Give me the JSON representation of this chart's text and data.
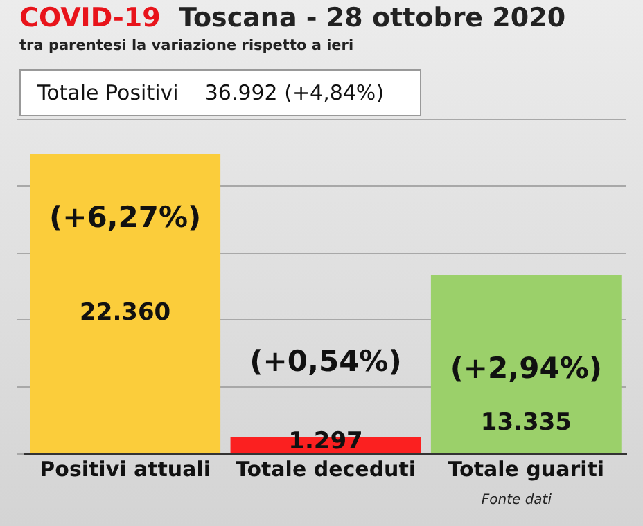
{
  "chart_data": {
    "type": "bar",
    "title": "COVID-19  Toscana - 28 ottobre 2020",
    "subtitle": "tra parentesi la variazione rispetto a ieri",
    "categories": [
      "Positivi attuali",
      "Totale deceduti",
      "Totale guariti"
    ],
    "values": [
      22360,
      1297,
      13335
    ],
    "colors": [
      "#fbcd3b",
      "#fb2020",
      "#9bd06a"
    ],
    "value_labels": [
      "22.360",
      "1.297",
      "13.335"
    ],
    "annotations": [
      "Totale Positivi    36.992 (+4,84%)",
      "(+6,27%)",
      "(+0,54%)",
      "(+2,94%)",
      "Fonte dati"
    ],
    "ylim": [
      0,
      25000
    ],
    "yticks": [
      {
        "value": 0,
        "label": null
      },
      {
        "value": 5000,
        "label": null
      },
      {
        "value": 10000,
        "label": null
      },
      {
        "value": 15000,
        "label": null
      },
      {
        "value": 20000,
        "label": null
      },
      {
        "value": 25000,
        "label": null
      }
    ],
    "grid": "y",
    "tick_labels": "x"
  }
}
